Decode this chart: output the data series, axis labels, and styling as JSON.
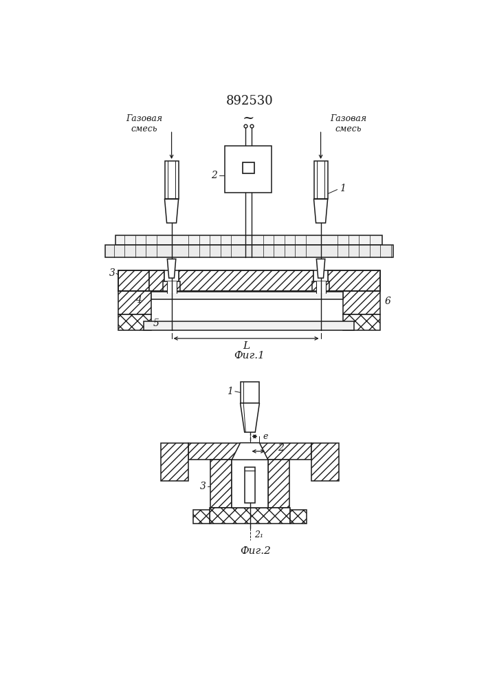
{
  "title": "892530",
  "fig1_label": "Фиг.1",
  "fig2_label": "Фиг.2",
  "gas_left": "Газовая\nсмесь",
  "gas_right": "Газовая\nсмесь",
  "bg": "#ffffff",
  "lc": "#1a1a1a"
}
